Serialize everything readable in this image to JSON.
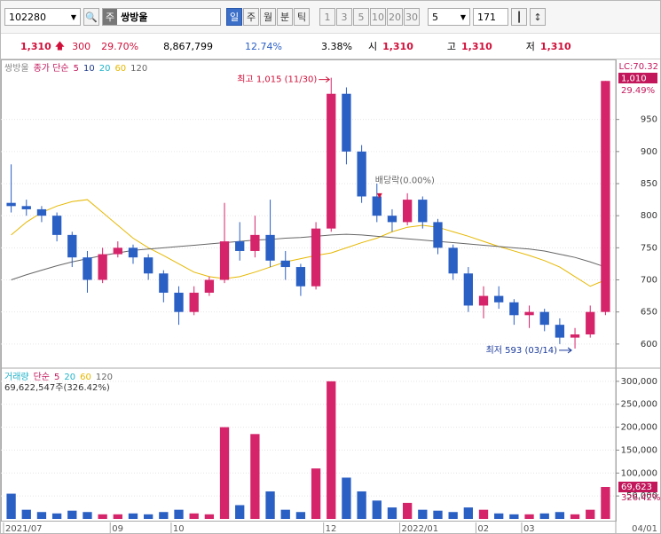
{
  "toolbar": {
    "code": "102280",
    "market": "주",
    "name": "쌍방울",
    "periods": [
      "일",
      "주",
      "월",
      "분",
      "틱"
    ],
    "selected_period": "일",
    "intervals": [
      "1",
      "3",
      "5",
      "10",
      "20",
      "30"
    ],
    "count_unit": "5",
    "count": "171"
  },
  "info_bar": {
    "price": "1,310",
    "change": "300",
    "change_rate": "29.70%",
    "volume": "8,867,799",
    "rate_a": "12.74%",
    "rate_b": "3.38%",
    "open_label": "시",
    "open": "1,310",
    "high_label": "고",
    "high": "1,310",
    "low_label": "저",
    "low": "1,310"
  },
  "chart_data": [
    {
      "type": "candlestick",
      "legend": {
        "name": "쌍방울",
        "ma_label": "종가 단순",
        "periods": [
          {
            "label": "5",
            "color": "#c2185b"
          },
          {
            "label": "10",
            "color": "#1e3a8a"
          },
          {
            "label": "20",
            "color": "#1fb2c9"
          },
          {
            "label": "60",
            "color": "#e6b800"
          },
          {
            "label": "120",
            "color": "#666666"
          }
        ]
      },
      "categories": [
        "2021/07",
        null,
        null,
        null,
        null,
        null,
        null,
        "09",
        null,
        null,
        null,
        "10",
        null,
        null,
        null,
        null,
        null,
        null,
        null,
        null,
        null,
        "12",
        null,
        null,
        null,
        null,
        "2022/01",
        null,
        null,
        null,
        null,
        "02",
        null,
        null,
        "03",
        null,
        null,
        null,
        null,
        null
      ],
      "open": [
        820,
        815,
        810,
        800,
        770,
        735,
        700,
        740,
        750,
        735,
        710,
        680,
        650,
        680,
        700,
        760,
        745,
        770,
        730,
        720,
        690,
        780,
        990,
        900,
        830,
        800,
        790,
        825,
        790,
        750,
        710,
        660,
        675,
        665,
        645,
        650,
        630,
        610,
        615,
        650
      ],
      "high": [
        880,
        825,
        815,
        805,
        775,
        745,
        750,
        760,
        755,
        740,
        715,
        690,
        690,
        705,
        820,
        790,
        800,
        825,
        745,
        725,
        790,
        1015,
        1000,
        910,
        850,
        810,
        835,
        830,
        795,
        755,
        720,
        690,
        690,
        670,
        660,
        655,
        640,
        625,
        660,
        1010
      ],
      "low": [
        805,
        800,
        790,
        760,
        720,
        680,
        695,
        735,
        725,
        700,
        665,
        630,
        645,
        675,
        695,
        730,
        735,
        720,
        700,
        675,
        685,
        775,
        880,
        820,
        790,
        775,
        785,
        780,
        740,
        700,
        650,
        640,
        655,
        630,
        625,
        620,
        600,
        593,
        610,
        645
      ],
      "close": [
        815,
        810,
        800,
        770,
        735,
        700,
        740,
        750,
        735,
        710,
        680,
        650,
        680,
        700,
        760,
        745,
        770,
        730,
        720,
        690,
        780,
        990,
        900,
        830,
        800,
        790,
        825,
        790,
        750,
        710,
        660,
        675,
        665,
        645,
        650,
        630,
        610,
        615,
        650,
        1010
      ],
      "up_color": "#d6246a",
      "down_color": "#2a5fc4",
      "series": [
        {
          "name": "60",
          "color": "#e6b800",
          "values": [
            770,
            790,
            805,
            815,
            822,
            825,
            805,
            785,
            765,
            750,
            738,
            725,
            712,
            705,
            702,
            705,
            712,
            720,
            728,
            733,
            738,
            742,
            750,
            758,
            765,
            775,
            782,
            785,
            782,
            775,
            768,
            760,
            752,
            745,
            738,
            730,
            720,
            705,
            690,
            700
          ]
        },
        {
          "name": "120",
          "color": "#666666",
          "values": [
            700,
            708,
            715,
            722,
            728,
            733,
            738,
            742,
            746,
            748,
            750,
            752,
            754,
            756,
            758,
            760,
            762,
            763,
            765,
            766,
            768,
            770,
            771,
            770,
            768,
            766,
            764,
            762,
            760,
            758,
            756,
            754,
            752,
            750,
            748,
            745,
            740,
            735,
            728,
            720
          ]
        }
      ],
      "ylim": [
        568,
        1038
      ],
      "yticks": [
        600,
        650,
        700,
        750,
        800,
        850,
        900,
        950
      ],
      "annotations": {
        "high": "최고 1,015 (11/30)",
        "low": "최저 593 (03/14)",
        "dividend": "배당락(0.00%)"
      },
      "lc": "LC:70.32",
      "last_label": "1,010",
      "last_change": "29.49%"
    },
    {
      "type": "bar",
      "legend": {
        "name": "거래량",
        "ma_label": "단순",
        "periods": [
          {
            "label": "5",
            "color": "#c2185b"
          },
          {
            "label": "20",
            "color": "#1fb2c9"
          },
          {
            "label": "60",
            "color": "#e6b800"
          },
          {
            "label": "120",
            "color": "#666666"
          }
        ],
        "summary": "69,622,547주(326.42%)"
      },
      "values": [
        55000,
        20000,
        15000,
        12000,
        18000,
        15000,
        10000,
        10000,
        12000,
        10000,
        15000,
        20000,
        12000,
        10000,
        200000,
        30000,
        185000,
        60000,
        20000,
        15000,
        110000,
        300000,
        90000,
        60000,
        40000,
        25000,
        35000,
        20000,
        18000,
        15000,
        25000,
        20000,
        12000,
        10000,
        10000,
        12000,
        15000,
        10000,
        20000,
        69623
      ],
      "ylim": [
        0,
        321000
      ],
      "yticks": [
        {
          "value": 50000,
          "label": "50,000"
        },
        {
          "value": 100000,
          "label": "100,000"
        },
        {
          "value": 150000,
          "label": "150,000"
        },
        {
          "value": 200000,
          "label": "200,000"
        },
        {
          "value": 250000,
          "label": "250,000"
        },
        {
          "value": 300000,
          "label": "300,000"
        }
      ],
      "last_label": "69,623",
      "last_change": "326.42%",
      "x_end_label": "04/01"
    }
  ]
}
